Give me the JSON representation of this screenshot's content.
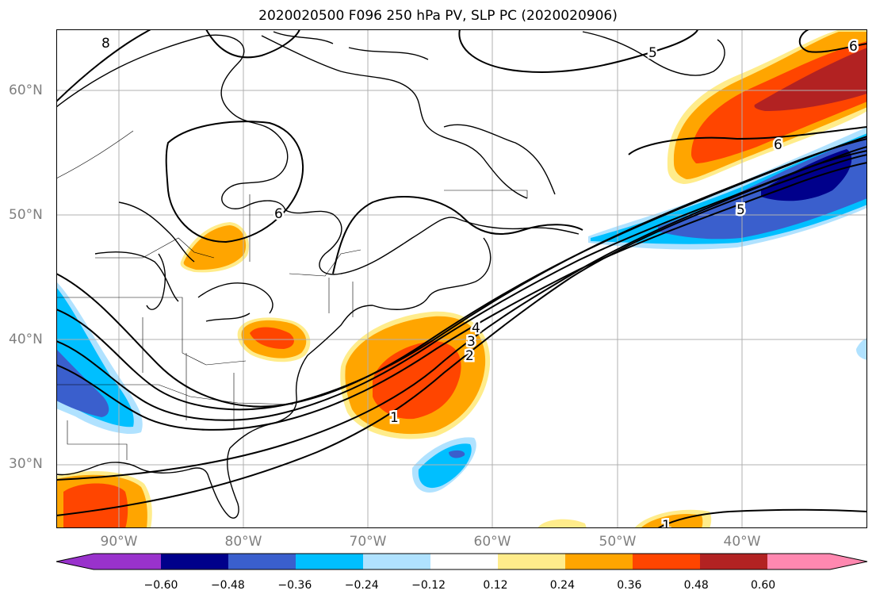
{
  "title": "2020020500 F096 250 hPa PV, SLP PC (2020020906)",
  "lat_labels": [
    "60°N",
    "50°N",
    "40°N",
    "30°N"
  ],
  "lon_labels": [
    "90°W",
    "80°W",
    "70°W",
    "60°W",
    "50°W",
    "40°W"
  ],
  "colorbar": {
    "ticks": [
      "−0.60",
      "−0.48",
      "−0.36",
      "−0.24",
      "−0.12",
      "0.12",
      "0.24",
      "0.36",
      "0.48",
      "0.60"
    ],
    "colors": [
      "#9932cc",
      "#00008b",
      "#3a5fcd",
      "#00bfff",
      "#b0e2ff",
      "#ffffff",
      "#ffec8b",
      "#ffa500",
      "#ff4500",
      "#b22222",
      "#ff88b0"
    ]
  },
  "contour_labels": [
    "1",
    "2",
    "3",
    "4",
    "5",
    "6",
    "6",
    "5",
    "6",
    "8",
    "1"
  ]
}
